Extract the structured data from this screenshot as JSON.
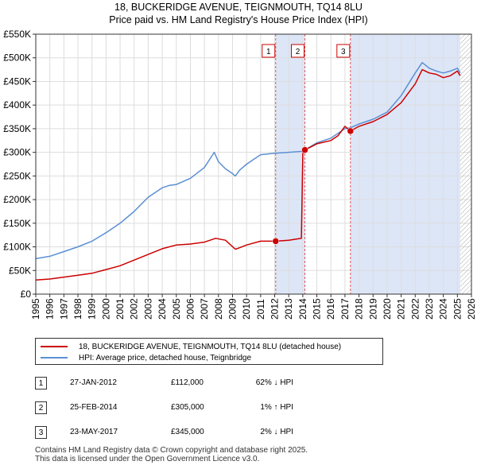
{
  "title": {
    "line1": "18, BUCKERIDGE AVENUE, TEIGNMOUTH, TQ14 8LU",
    "line2": "Price paid vs. HM Land Registry's House Price Index (HPI)"
  },
  "legend": {
    "property_label": "18, BUCKERIDGE AVENUE, TEIGNMOUTH, TQ14 8LU (detached house)",
    "hpi_label": "HPI: Average price, detached house, Teignbridge"
  },
  "sales": [
    {
      "num": "1",
      "date": "27-JAN-2012",
      "price": "£112,000",
      "hpi": "62% ↓ HPI"
    },
    {
      "num": "2",
      "date": "25-FEB-2014",
      "price": "£305,000",
      "hpi": "1% ↑ HPI"
    },
    {
      "num": "3",
      "date": "23-MAY-2017",
      "price": "£345,000",
      "hpi": "2% ↓ HPI"
    }
  ],
  "footer": {
    "line1": "Contains HM Land Registry data © Crown copyright and database right 2025.",
    "line2": "This data is licensed under the Open Government Licence v3.0."
  },
  "chart_data": {
    "type": "line",
    "xlim": [
      1995,
      2026
    ],
    "ylim": [
      0,
      550000
    ],
    "y_ticks": [
      0,
      50000,
      100000,
      150000,
      200000,
      250000,
      300000,
      350000,
      400000,
      450000,
      500000,
      550000
    ],
    "y_tick_labels": [
      "£0",
      "£50K",
      "£100K",
      "£150K",
      "£200K",
      "£250K",
      "£300K",
      "£350K",
      "£400K",
      "£450K",
      "£500K",
      "£550K"
    ],
    "x_ticks": [
      1995,
      1996,
      1997,
      1998,
      1999,
      2000,
      2001,
      2002,
      2003,
      2004,
      2005,
      2006,
      2007,
      2008,
      2009,
      2010,
      2011,
      2012,
      2013,
      2014,
      2015,
      2016,
      2017,
      2018,
      2019,
      2020,
      2021,
      2022,
      2023,
      2024,
      2025,
      2026
    ],
    "x_tick_labels": [
      "1995",
      "1996",
      "1997",
      "1998",
      "1999",
      "2000",
      "2001",
      "2002",
      "2003",
      "2004",
      "2005",
      "2006",
      "2007",
      "2008",
      "2009",
      "2010",
      "2011",
      "2012",
      "2013",
      "2014",
      "2015",
      "2016",
      "2017",
      "2018",
      "2019",
      "2020",
      "2021",
      "2022",
      "2023",
      "2024",
      "2025",
      "2026"
    ],
    "colors": {
      "property": "#cc0000",
      "hpi": "#5b8fd4",
      "shade": "#dde6f7",
      "vline": "#e05555",
      "hatch": "#aaaaaa"
    },
    "hatch_from": 2025.2,
    "series": [
      {
        "name": "18, BUCKERIDGE AVENUE, TEIGNMOUTH, TQ14 8LU (detached house)",
        "x": [
          1995.0,
          1996.0,
          1997.0,
          1998.0,
          1999.0,
          2000.0,
          2001.0,
          2002.0,
          2003.0,
          2004.0,
          2005.0,
          2006.0,
          2007.0,
          2007.8,
          2008.5,
          2009.2,
          2009.5,
          2010.0,
          2011.0,
          2012.07,
          2013.0,
          2013.9,
          2014.0,
          2014.15,
          2015.0,
          2016.0,
          2016.5,
          2017.0,
          2017.39,
          2018.0,
          2019.0,
          2020.0,
          2021.0,
          2022.0,
          2022.5,
          2023.0,
          2023.5,
          2024.0,
          2024.5,
          2025.0,
          2025.2
        ],
        "y": [
          30000,
          32000,
          36000,
          40000,
          44000,
          52000,
          60000,
          72000,
          84000,
          96000,
          104000,
          106000,
          110000,
          118000,
          114000,
          95000,
          98000,
          104000,
          112000,
          112000,
          114000,
          118000,
          298000,
          305000,
          318000,
          325000,
          335000,
          355000,
          345000,
          355000,
          365000,
          380000,
          405000,
          445000,
          475000,
          468000,
          465000,
          458000,
          462000,
          472000,
          462000
        ]
      },
      {
        "name": "HPI: Average price, detached house, Teignbridge",
        "x": [
          1995.0,
          1996.0,
          1997.0,
          1998.0,
          1999.0,
          2000.0,
          2001.0,
          2002.0,
          2003.0,
          2004.0,
          2004.5,
          2005.0,
          2006.0,
          2007.0,
          2007.7,
          2008.0,
          2008.5,
          2009.0,
          2009.2,
          2009.5,
          2010.0,
          2011.0,
          2012.0,
          2013.0,
          2014.0,
          2014.15,
          2015.0,
          2016.0,
          2017.0,
          2017.39,
          2018.0,
          2019.0,
          2020.0,
          2021.0,
          2022.0,
          2022.5,
          2023.0,
          2023.5,
          2024.0,
          2024.5,
          2025.0,
          2025.2
        ],
        "y": [
          75000,
          80000,
          90000,
          100000,
          112000,
          130000,
          150000,
          175000,
          205000,
          225000,
          230000,
          232000,
          245000,
          268000,
          300000,
          280000,
          265000,
          255000,
          250000,
          262000,
          275000,
          295000,
          298000,
          300000,
          302000,
          305000,
          320000,
          330000,
          350000,
          352000,
          360000,
          370000,
          385000,
          420000,
          468000,
          490000,
          478000,
          472000,
          468000,
          472000,
          478000,
          468000
        ]
      }
    ],
    "sales": [
      {
        "label": "1",
        "x": 2012.07,
        "y": 112000
      },
      {
        "label": "2",
        "x": 2014.15,
        "y": 305000
      },
      {
        "label": "3",
        "x": 2017.39,
        "y": 345000
      }
    ],
    "shaded_ranges": [
      [
        2012.07,
        2014.15
      ],
      [
        2017.39,
        2025.2
      ]
    ]
  }
}
